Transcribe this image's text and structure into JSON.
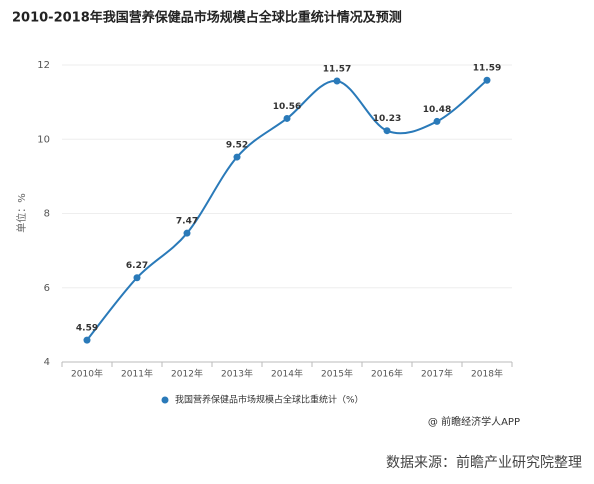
{
  "chart_data": {
    "type": "line",
    "title": "2010-2018年我国营养保健品市场规模占全球比重统计情况及预测",
    "y_label": "单位：%",
    "categories": [
      "2010年",
      "2011年",
      "2012年",
      "2013年",
      "2014年",
      "2015年",
      "2016年",
      "2017年",
      "2018年"
    ],
    "series": [
      {
        "name": "我国营养保健品市场规模占全球比重统计（%）",
        "color": "#2a7ab9",
        "values": [
          4.59,
          6.27,
          7.47,
          9.52,
          10.56,
          11.57,
          10.23,
          10.48,
          11.59
        ]
      }
    ],
    "ylim": [
      4,
      12
    ],
    "yticks": [
      4,
      6,
      8,
      10,
      12
    ],
    "grid": true,
    "footnote": "@ 前瞻经济学人APP",
    "source": "数据来源：前瞻产业研究院整理"
  }
}
